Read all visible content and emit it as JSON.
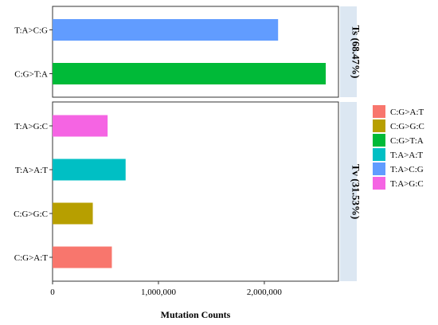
{
  "chart_data": {
    "type": "bar",
    "orientation": "horizontal",
    "xlabel": "Mutation Counts",
    "xlim": [
      0,
      2700000
    ],
    "x_ticks": [
      0,
      1000000,
      2000000
    ],
    "x_tick_labels": [
      "0",
      "1,000,000",
      "2,000,000"
    ],
    "grid": false,
    "legend_position": "right",
    "panels": [
      {
        "strip_label": "Ts (68.47%)",
        "categories": [
          "T:A>C:G",
          "C:G>T:A"
        ],
        "values": [
          2130000,
          2580000
        ]
      },
      {
        "strip_label": "Tv (31.53%)",
        "categories": [
          "T:A>G:C",
          "T:A>A:T",
          "C:G>G:C",
          "C:G>A:T"
        ],
        "values": [
          520000,
          690000,
          380000,
          560000
        ]
      }
    ],
    "legend": [
      {
        "label": "C:G>A:T",
        "color": "#F8766D"
      },
      {
        "label": "C:G>G:C",
        "color": "#B79F00"
      },
      {
        "label": "C:G>T:A",
        "color": "#00BA38"
      },
      {
        "label": "T:A>A:T",
        "color": "#00BFC4"
      },
      {
        "label": "T:A>C:G",
        "color": "#619CFF"
      },
      {
        "label": "T:A>G:C",
        "color": "#F564E3"
      }
    ],
    "strip_color": "#DCE7F2"
  }
}
